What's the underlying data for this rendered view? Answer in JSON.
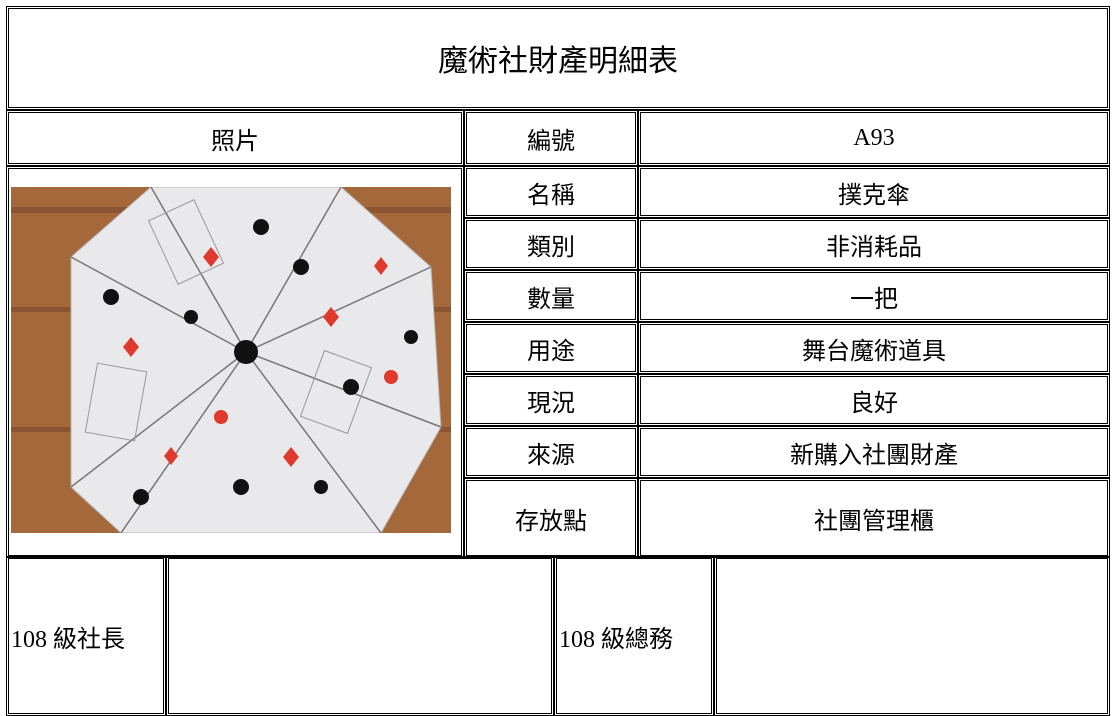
{
  "title": "魔術社財產明細表",
  "photo_label": "照片",
  "fields": [
    {
      "label": "編號",
      "value": "A93"
    },
    {
      "label": "名稱",
      "value": "撲克傘"
    },
    {
      "label": "類別",
      "value": "非消耗品"
    },
    {
      "label": "數量",
      "value": "一把"
    },
    {
      "label": "用途",
      "value": "舞台魔術道具"
    },
    {
      "label": "現況",
      "value": "良好"
    },
    {
      "label": "來源",
      "value": "新購入社團財產"
    },
    {
      "label": "存放點",
      "value": "社團管理櫃"
    }
  ],
  "footer": [
    "108 級社長",
    "108 級總務"
  ]
}
